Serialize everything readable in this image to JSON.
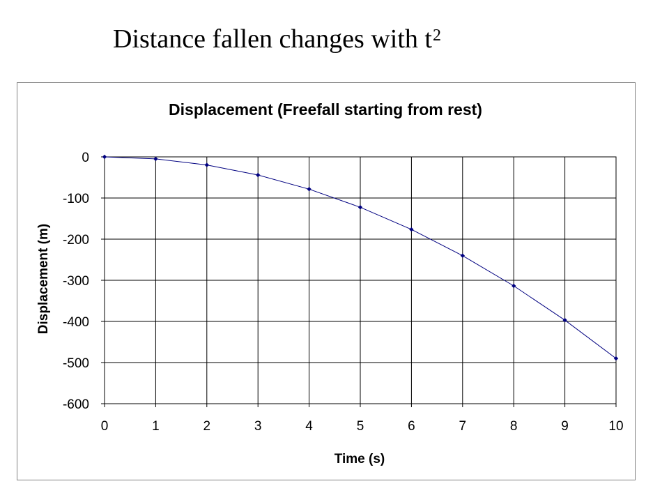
{
  "slide": {
    "title_main": "Distance fallen changes with t",
    "title_sup": "2"
  },
  "chart_data": {
    "type": "line",
    "title": "Displacement (Freefall starting from rest)",
    "xlabel": "Time (s)",
    "ylabel": "Displacement (m)",
    "xlim": [
      0,
      10
    ],
    "ylim": [
      -600,
      0
    ],
    "xticks": [
      0,
      1,
      2,
      3,
      4,
      5,
      6,
      7,
      8,
      9,
      10
    ],
    "yticks": [
      0,
      -100,
      -200,
      -300,
      -400,
      -500,
      -600
    ],
    "grid": true,
    "legend": "none",
    "series": [
      {
        "x": [
          0,
          1,
          2,
          3,
          4,
          5,
          6,
          7,
          8,
          9,
          10
        ],
        "y": [
          0,
          -4.9,
          -19.6,
          -44.1,
          -78.4,
          -122.5,
          -176.4,
          -240.1,
          -313.6,
          -396.9,
          -490
        ]
      }
    ],
    "colors": {
      "line": "#000080",
      "marker": "#000080",
      "grid": "#000000"
    }
  }
}
